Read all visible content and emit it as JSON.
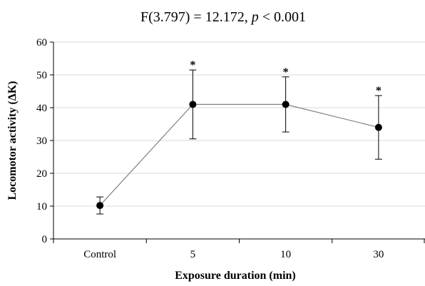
{
  "chart_data": {
    "type": "line",
    "title": {
      "stat_prefix": "F(3.797) = 12.172, ",
      "p_symbol": "p",
      "p_suffix": " < 0.001"
    },
    "xlabel": "Exposure duration (min)",
    "ylabel": "Locomotor activity (ΔK)",
    "categories": [
      "Control",
      "5",
      "10",
      "30"
    ],
    "ylim": [
      0,
      60
    ],
    "yticks": [
      "0",
      "10",
      "20",
      "30",
      "40",
      "50",
      "60"
    ],
    "grid": true,
    "series": [
      {
        "values": [
          10.2,
          41,
          41,
          34
        ],
        "error": [
          2.6,
          10.5,
          8.4,
          9.7
        ],
        "significance": [
          "",
          "*",
          "*",
          "*"
        ],
        "color": "#000000"
      }
    ],
    "line_color": "#808080",
    "grid_color": "#d9d9d9"
  }
}
